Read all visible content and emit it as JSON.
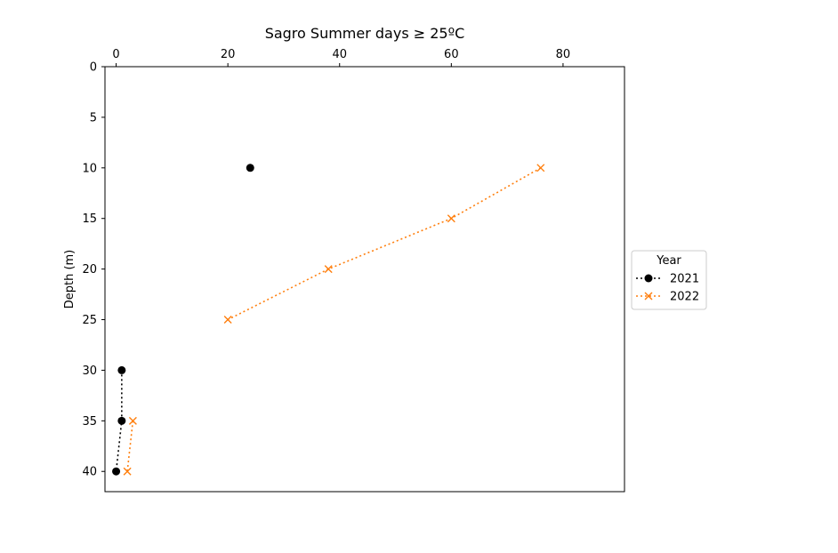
{
  "chart_data": {
    "type": "line",
    "title": "Sagro Summer days ≥ 25ºC",
    "xlabel": "",
    "ylabel": "Depth (m)",
    "xlim": [
      -2,
      91
    ],
    "ylim": [
      42,
      0
    ],
    "x_axis_position": "top",
    "y_inverted": true,
    "xticks": [
      0,
      20,
      40,
      60,
      80
    ],
    "yticks": [
      0,
      5,
      10,
      15,
      20,
      25,
      30,
      35,
      40
    ],
    "grid": false,
    "legend": {
      "title": "Year",
      "placement": "outside-right"
    },
    "series": [
      {
        "name": "2021",
        "color": "#000000",
        "marker": "circle",
        "linestyle": "dotted",
        "points": [
          {
            "x": 24,
            "y": 10
          },
          {
            "x": null,
            "y": 15
          },
          {
            "x": null,
            "y": 20
          },
          {
            "x": null,
            "y": 25
          },
          {
            "x": 1,
            "y": 30
          },
          {
            "x": 1,
            "y": 35
          },
          {
            "x": 0,
            "y": 40
          }
        ]
      },
      {
        "name": "2022",
        "color": "#ff7f0e",
        "marker": "x",
        "linestyle": "dotted",
        "points": [
          {
            "x": 76,
            "y": 10
          },
          {
            "x": 60,
            "y": 15
          },
          {
            "x": 38,
            "y": 20
          },
          {
            "x": 20,
            "y": 25
          },
          {
            "x": null,
            "y": 30
          },
          {
            "x": 3,
            "y": 35
          },
          {
            "x": 2,
            "y": 40
          }
        ]
      }
    ]
  }
}
